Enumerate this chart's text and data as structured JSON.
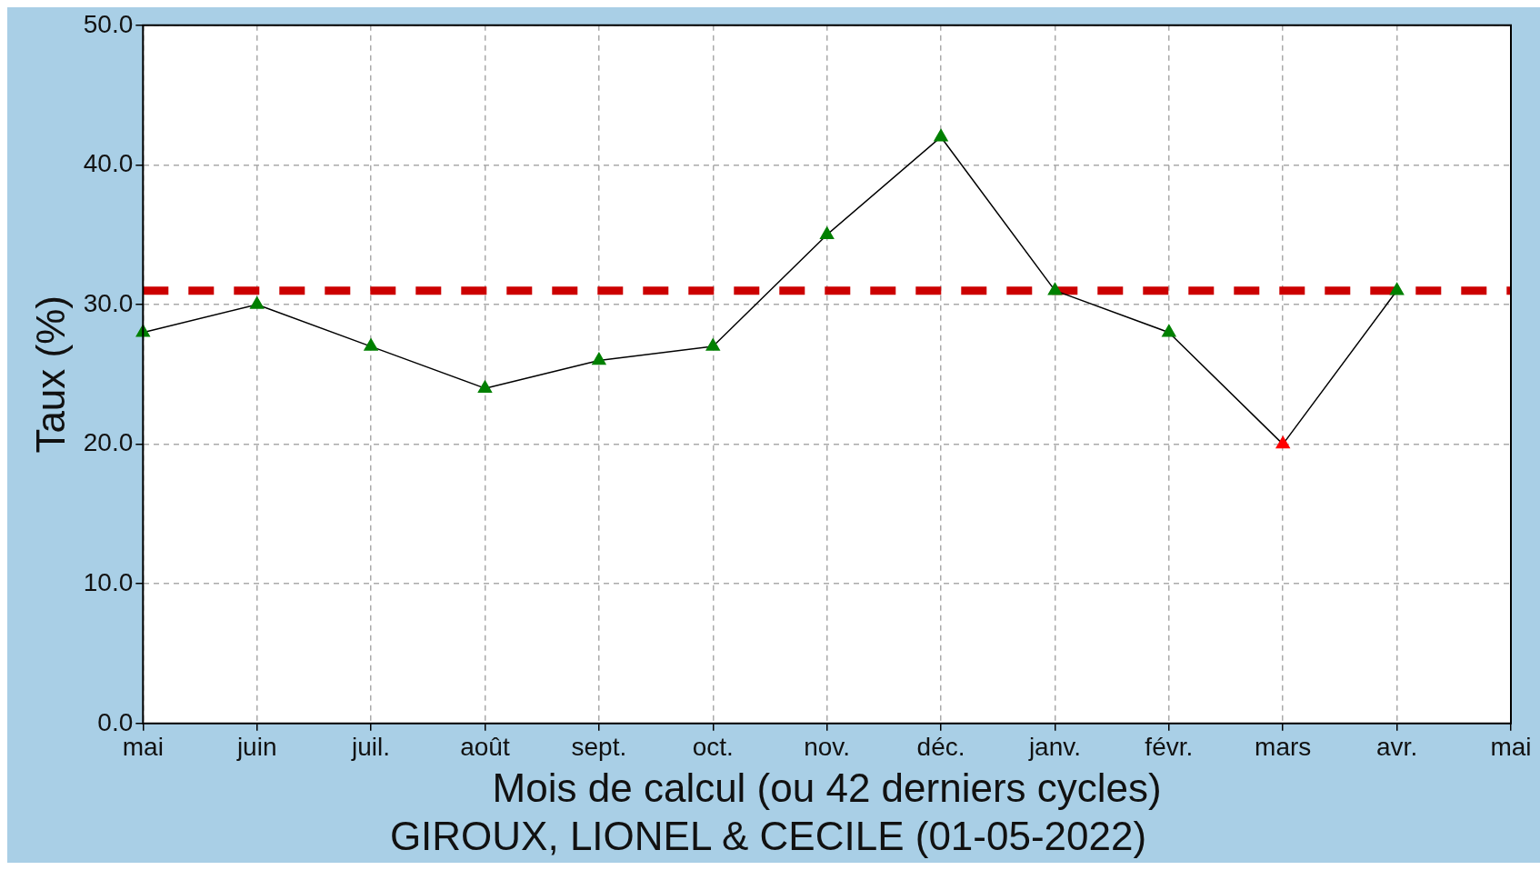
{
  "chart_data": {
    "type": "line",
    "title": "GIROUX, LIONEL & CECILE (01-05-2022)",
    "xlabel": "Mois de calcul (ou 42 derniers cycles)",
    "ylabel": "Taux (%)",
    "categories": [
      "mai",
      "juin",
      "juil.",
      "août",
      "sept.",
      "oct.",
      "nov.",
      "déc.",
      "janv.",
      "févr.",
      "mars",
      "avr.",
      "mai"
    ],
    "series": [
      {
        "color": "#000000",
        "colors": [
          "#008000",
          "#008000",
          "#008000",
          "#008000",
          "#008000",
          "#008000",
          "#008000",
          "#008000",
          "#008000",
          "#008000",
          "#ff0000",
          "#008000",
          null
        ],
        "values": [
          28,
          30,
          27,
          24,
          26,
          27,
          35,
          42,
          31,
          28,
          20,
          31,
          null
        ]
      }
    ],
    "ylim": [
      0,
      50
    ],
    "yticks": [
      {
        "value": 0,
        "label": "0.0"
      },
      {
        "value": 10,
        "label": "10.0"
      },
      {
        "value": 20,
        "label": "20.0"
      },
      {
        "value": 30,
        "label": "30.0"
      },
      {
        "value": 40,
        "label": "40.0"
      },
      {
        "value": 50,
        "label": "50.0"
      }
    ],
    "ref_lines": [
      {
        "axis": "y",
        "value": 31,
        "color": "#cc0000",
        "line_style": "dashed"
      }
    ],
    "grid": true,
    "marker": "triangle",
    "line_style": "solid"
  }
}
